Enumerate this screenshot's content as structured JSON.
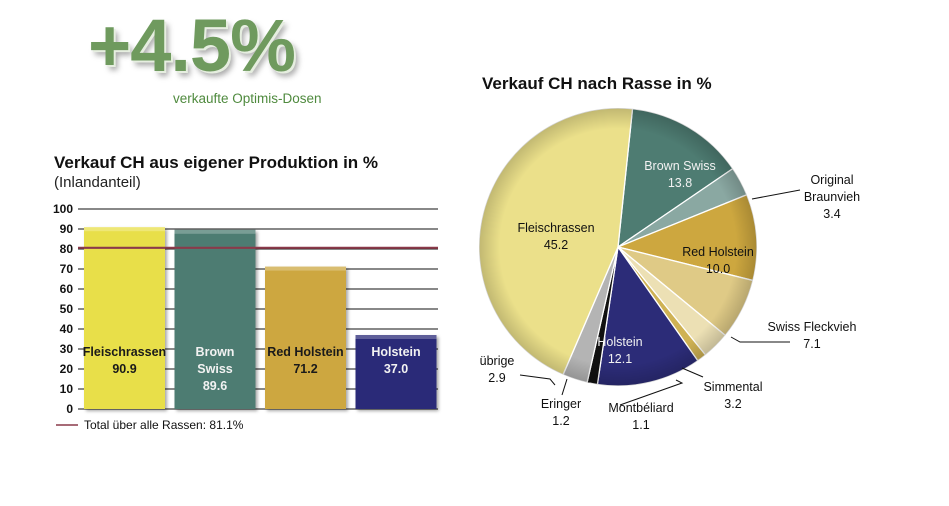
{
  "headline": {
    "value": "+4.5%",
    "caption": "verkaufte Optimis-Dosen",
    "color": "#6f9a5e"
  },
  "chart_data": [
    {
      "type": "bar",
      "title": "Verkauf CH aus eigener Produktion in %",
      "subtitle": "(Inlandanteil)",
      "xlabel": "",
      "ylabel": "",
      "ylim": [
        0,
        100
      ],
      "yticks": [
        0,
        10,
        20,
        30,
        40,
        50,
        60,
        70,
        80,
        90,
        100
      ],
      "grid": true,
      "categories": [
        "Fleischrassen",
        "Brown Swiss",
        "Red Holstein",
        "Holstein"
      ],
      "category_label_lines": [
        [
          "Fleischrassen"
        ],
        [
          "Brown",
          "Swiss"
        ],
        [
          "Red Holstein"
        ],
        [
          "Holstein"
        ]
      ],
      "values": [
        90.9,
        89.6,
        71.2,
        37.0
      ],
      "value_labels": [
        "90.9",
        "89.6",
        "71.2",
        "37.0"
      ],
      "colors": [
        "#e8df4a",
        "#4e7c72",
        "#cda73f",
        "#2c2c78"
      ],
      "label_colors": [
        "#1a1a1a",
        "#f2f2f2",
        "#1a1a1a",
        "#f2f2f2"
      ],
      "reference_line": {
        "value": 81.1,
        "color": "#8a3a4a",
        "label": "Total über alle Rassen: 81.1%"
      },
      "legend": "bottom-left"
    },
    {
      "type": "pie",
      "title": "Verkauf CH nach Rasse in %",
      "slices": [
        {
          "label": "Brown Swiss",
          "value": 13.8,
          "value_label": "13.8",
          "color": "#4e7c72",
          "text_color": "#f2f2f2",
          "placement": "inside"
        },
        {
          "label": "Original Braunvieh",
          "value": 3.4,
          "value_label": "3.4",
          "color": "#8aa8a2",
          "text_color": "#111111",
          "placement": "outside"
        },
        {
          "label": "Red Holstein",
          "value": 10.0,
          "value_label": "10.0",
          "color": "#cda73f",
          "text_color": "#111111",
          "placement": "inside"
        },
        {
          "label": "Swiss Fleckvieh",
          "value": 7.1,
          "value_label": "7.1",
          "color": "#dfca86",
          "text_color": "#111111",
          "placement": "outside"
        },
        {
          "label": "Simmental",
          "value": 3.2,
          "value_label": "3.2",
          "color": "#ece0b4",
          "text_color": "#111111",
          "placement": "outside"
        },
        {
          "label": "Montbéliard",
          "value": 1.1,
          "value_label": "1.1",
          "color": "#cfb254",
          "text_color": "#111111",
          "placement": "outside"
        },
        {
          "label": "Holstein",
          "value": 12.1,
          "value_label": "12.1",
          "color": "#2c2c78",
          "text_color": "#f2f2f2",
          "placement": "inside"
        },
        {
          "label": "Eringer",
          "value": 1.2,
          "value_label": "1.2",
          "color": "#111111",
          "text_color": "#111111",
          "placement": "outside"
        },
        {
          "label": "übrige",
          "value": 2.9,
          "value_label": "2.9",
          "color": "#b4b4b4",
          "text_color": "#111111",
          "placement": "outside"
        },
        {
          "label": "Fleischrassen",
          "value": 45.2,
          "value_label": "45.2",
          "color": "#ebe08a",
          "text_color": "#111111",
          "placement": "inside"
        }
      ],
      "start_angle_deg": 6,
      "direction": "clockwise"
    }
  ]
}
